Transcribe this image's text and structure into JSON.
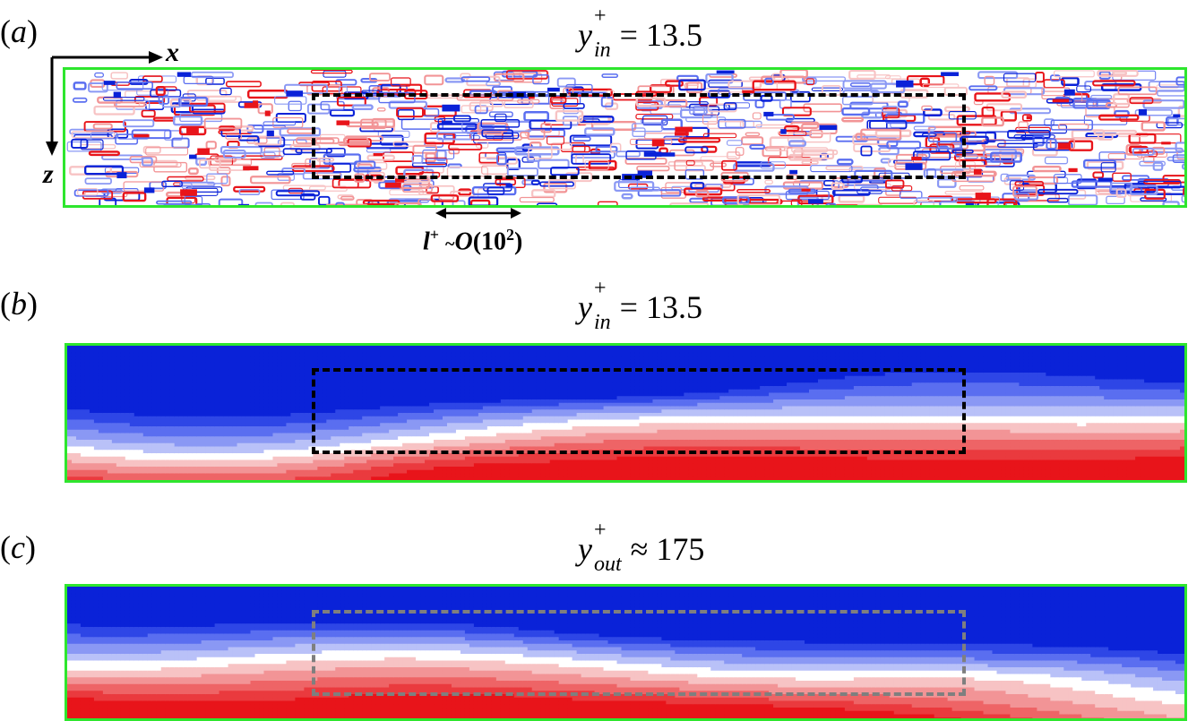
{
  "figure": {
    "panels": [
      {
        "id": "a",
        "label": "a",
        "title_var": "y",
        "title_sup": "+",
        "title_sub": "in",
        "title_rel": "=",
        "title_value": "13.5",
        "style": "contours"
      },
      {
        "id": "b",
        "label": "b",
        "title_var": "y",
        "title_sup": "+",
        "title_sub": "in",
        "title_rel": "=",
        "title_value": "13.5",
        "style": "filled"
      },
      {
        "id": "c",
        "label": "c",
        "title_var": "y",
        "title_sup": "+",
        "title_sub": "out",
        "title_rel": "≈",
        "title_value": "175",
        "style": "filled"
      }
    ],
    "axes": {
      "x_label": "x",
      "z_label": "z"
    },
    "scale_annotation": {
      "symbol": "l",
      "sup": "+",
      "tilde": "~",
      "order": "O",
      "base": "10",
      "exp": "2"
    },
    "colors": {
      "frame": "#2ee62e",
      "positive": "#e8141a",
      "negative": "#0a22d8",
      "box_dark": "#000000",
      "box_grey": "#7f7f7f"
    }
  }
}
